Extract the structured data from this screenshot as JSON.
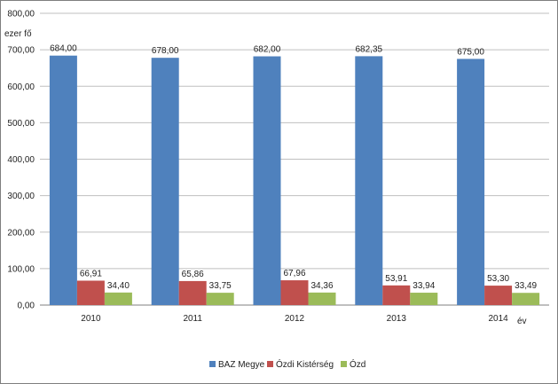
{
  "chart_data": {
    "type": "bar",
    "categories": [
      "2010",
      "2011",
      "2012",
      "2013",
      "2014"
    ],
    "series": [
      {
        "name": "BAZ Megye",
        "values": [
          684.0,
          678.0,
          682.0,
          682.35,
          675.0
        ],
        "labels": [
          "684,00",
          "678,00",
          "682,00",
          "682,35",
          "675,00"
        ],
        "color": "#4f81bd"
      },
      {
        "name": "Ózdi Kistérség",
        "values": [
          66.91,
          65.86,
          67.96,
          53.91,
          53.3
        ],
        "labels": [
          "66,91",
          "65,86",
          "67,96",
          "53,91",
          "53,30"
        ],
        "color": "#c0504d"
      },
      {
        "name": "Ózd",
        "values": [
          34.4,
          33.75,
          34.36,
          33.94,
          33.49
        ],
        "labels": [
          "34,40",
          "33,75",
          "34,36",
          "33,94",
          "33,49"
        ],
        "color": "#9bbb59"
      }
    ],
    "yticks": [
      "0,00",
      "100,00",
      "200,00",
      "300,00",
      "400,00",
      "500,00",
      "600,00",
      "700,00",
      "800,00"
    ],
    "ylim": [
      0,
      800
    ],
    "ylabel": "ezer fő",
    "xlabel": "év",
    "grid": true,
    "legend_position": "bottom"
  }
}
